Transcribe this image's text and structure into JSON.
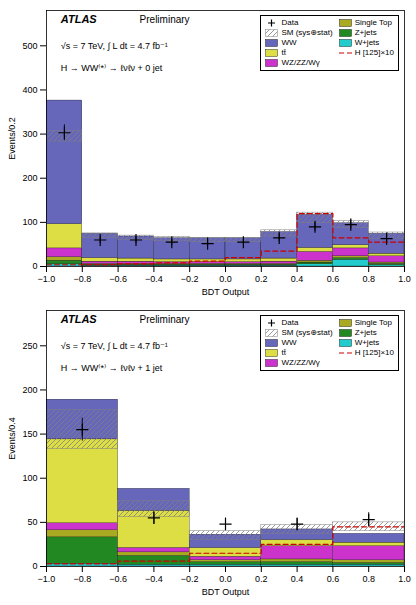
{
  "chart_data": [
    {
      "type": "bar",
      "stacked": true,
      "legend": "upper right",
      "xlabel": "BDT Output",
      "ylabel": "Events/0.2",
      "annotations": [
        "ATLAS",
        "Preliminary",
        "√s = 7 TeV, ∫ L dt = 4.7 fb⁻¹",
        "H → WW⁽*⁾ → ℓνℓν + 0 jet"
      ],
      "bins": [
        -1.0,
        -0.8,
        -0.6,
        -0.4,
        -0.2,
        0.0,
        0.2,
        0.4,
        0.6,
        0.8,
        1.0
      ],
      "xlim": [
        -1,
        1
      ],
      "xticks": [
        {
          "value": -1.0,
          "label": "−1.0"
        },
        {
          "value": -0.8,
          "label": "−0.8"
        },
        {
          "value": -0.6,
          "label": "−0.6"
        },
        {
          "value": -0.4,
          "label": "−0.4"
        },
        {
          "value": -0.2,
          "label": "−0.2"
        },
        {
          "value": 0.0,
          "label": "0.0"
        },
        {
          "value": 0.2,
          "label": "0.2"
        },
        {
          "value": 0.4,
          "label": "0.4"
        },
        {
          "value": 0.6,
          "label": "0.6"
        },
        {
          "value": 0.8,
          "label": "0.8"
        },
        {
          "value": 1.0,
          "label": "1.0"
        }
      ],
      "ylim": [
        0,
        580
      ],
      "yticks": [
        0,
        100,
        200,
        300,
        400,
        500
      ],
      "series": [
        {
          "name": "Data",
          "type": "scatter",
          "marker": "+",
          "color": "black",
          "values": [
            303,
            60,
            60,
            55,
            52,
            55,
            65,
            90,
            95,
            63
          ],
          "errors": [
            18,
            8,
            8,
            7,
            7,
            7,
            8,
            9,
            10,
            8
          ]
        },
        {
          "name": "SM (sys⊕stat)",
          "type": "band",
          "color": "gray",
          "values": [
            295,
            70,
            65,
            62,
            60,
            60,
            75,
            110,
            95,
            70
          ],
          "errors": [
            12,
            5,
            5,
            5,
            5,
            5,
            7,
            12,
            8,
            7
          ]
        },
        {
          "name": "WW",
          "color": "#6666bb",
          "values": [
            280,
            55,
            50,
            48,
            48,
            48,
            60,
            75,
            50,
            45
          ]
        },
        {
          "name": "tt̄",
          "color": "#dddd44",
          "values": [
            55,
            8,
            7,
            6,
            6,
            6,
            7,
            9,
            7,
            6
          ]
        },
        {
          "name": "WZ/ZZ/Wγ",
          "color": "#cc33cc",
          "values": [
            20,
            5,
            5,
            4,
            4,
            4,
            5,
            20,
            18,
            14
          ]
        },
        {
          "name": "Single Top",
          "color": "#aaaa22",
          "values": [
            8,
            2,
            2,
            2,
            2,
            2,
            2,
            4,
            4,
            3
          ]
        },
        {
          "name": "Z+jets",
          "color": "#228822",
          "values": [
            8,
            2,
            2,
            2,
            2,
            2,
            2,
            4,
            4,
            3
          ]
        },
        {
          "name": "W+jets",
          "color": "#22cccc",
          "values": [
            5,
            2,
            2,
            2,
            2,
            2,
            2,
            5,
            15,
            3
          ]
        },
        {
          "name": "H [125]×10",
          "type": "line",
          "line_style": "dashed",
          "color": "#cc0000",
          "values": [
            4,
            4,
            6,
            8,
            12,
            20,
            35,
            120,
            65,
            55
          ]
        }
      ]
    },
    {
      "type": "bar",
      "stacked": true,
      "legend": "upper right",
      "xlabel": "BDT Output",
      "ylabel": "Events/0.4",
      "annotations": [
        "ATLAS",
        "Preliminary",
        "√s = 7 TeV, ∫ L dt = 4.7 fb⁻¹",
        "H → WW⁽*⁾ → ℓνℓν + 1 jet"
      ],
      "bins": [
        -1.0,
        -0.6,
        -0.2,
        0.2,
        0.6,
        1.0
      ],
      "xlim": [
        -1,
        1
      ],
      "xticks": [
        {
          "value": -1.0,
          "label": "−1.0"
        },
        {
          "value": -0.8,
          "label": "−0.8"
        },
        {
          "value": -0.6,
          "label": "−0.6"
        },
        {
          "value": -0.4,
          "label": "−0.4"
        },
        {
          "value": -0.2,
          "label": "−0.2"
        },
        {
          "value": 0.0,
          "label": "0.0"
        },
        {
          "value": 0.2,
          "label": "0.2"
        },
        {
          "value": 0.4,
          "label": "0.4"
        },
        {
          "value": 0.6,
          "label": "0.6"
        },
        {
          "value": 0.8,
          "label": "0.8"
        },
        {
          "value": 1.0,
          "label": "1.0"
        }
      ],
      "ylim": [
        0,
        290
      ],
      "yticks": [
        0,
        50,
        100,
        150,
        200,
        250
      ],
      "series": [
        {
          "name": "Data",
          "type": "scatter",
          "marker": "+",
          "color": "black",
          "values": [
            155,
            55,
            48,
            48,
            53
          ],
          "errors": [
            13,
            7,
            7,
            7,
            8
          ]
        },
        {
          "name": "SM (sys⊕stat)",
          "type": "band",
          "color": "gray",
          "values": [
            155,
            65,
            35,
            42,
            45
          ],
          "errors": [
            22,
            9,
            5,
            5,
            5
          ]
        },
        {
          "name": "WW",
          "color": "#6666bb",
          "values": [
            45,
            25,
            15,
            12,
            10
          ]
        },
        {
          "name": "tt̄",
          "color": "#dddd44",
          "values": [
            95,
            42,
            10,
            7,
            4
          ]
        },
        {
          "name": "WZ/ZZ/Wγ",
          "color": "#cc33cc",
          "values": [
            8,
            5,
            4,
            15,
            16
          ]
        },
        {
          "name": "Single Top",
          "color": "#aaaa22",
          "values": [
            8,
            4,
            2,
            3,
            3
          ]
        },
        {
          "name": "Z+jets",
          "color": "#228822",
          "values": [
            30,
            10,
            3,
            3,
            2
          ]
        },
        {
          "name": "W+jets",
          "color": "#22cccc",
          "values": [
            3,
            2,
            2,
            2,
            2
          ]
        },
        {
          "name": "H [125]×10",
          "type": "line",
          "line_style": "dashed",
          "color": "#cc0000",
          "values": [
            3,
            6,
            15,
            25,
            45
          ]
        }
      ]
    }
  ]
}
